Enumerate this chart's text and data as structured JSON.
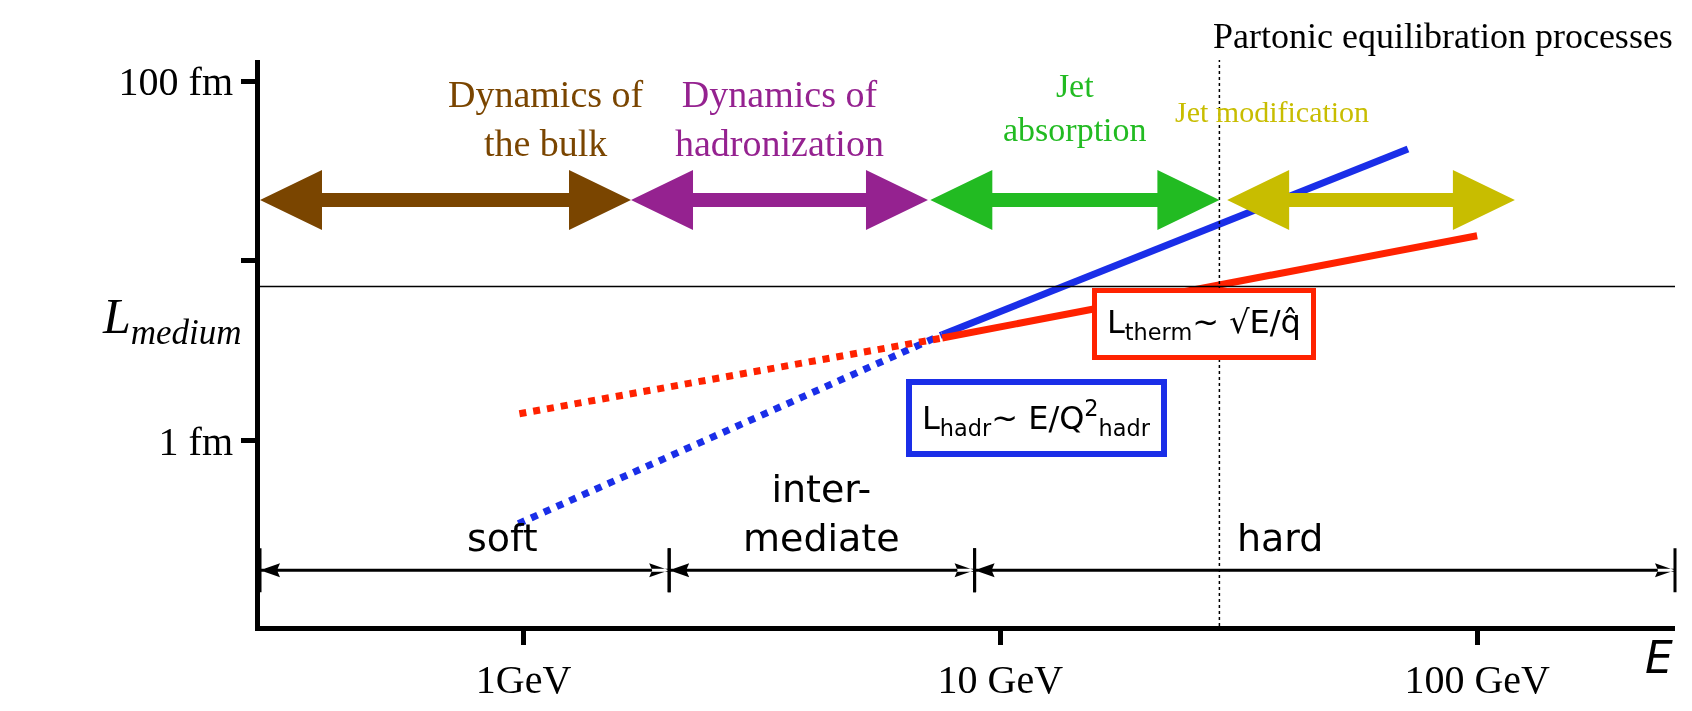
{
  "chart_data": {
    "type": "line",
    "log": "xy",
    "grid": false,
    "xlabel": "E",
    "xlim": [
      0.28,
      260
    ],
    "ylim": [
      0.093,
      131
    ],
    "xticks": [
      {
        "value": 1,
        "label": "1GeV"
      },
      {
        "value": 10,
        "label": "10 GeV"
      },
      {
        "value": 100,
        "label": "100 GeV"
      }
    ],
    "yticks": [
      {
        "value": 1,
        "label": "1 fm"
      },
      {
        "value": 10,
        "label": null
      },
      {
        "value": 100,
        "label": "100 fm"
      }
    ],
    "series": [
      {
        "color": "#1a2ee8",
        "line_style": "solid",
        "x": [
          7.55,
          71.6
        ],
        "values": [
          3.88,
          41.9
        ]
      },
      {
        "color": "#1a2ee8",
        "line_style": "dotted",
        "x": [
          0.975,
          7.55
        ],
        "values": [
          0.345,
          3.88
        ]
      },
      {
        "color": "#ff2200",
        "line_style": "solid",
        "x": [
          7.55,
          100
        ],
        "values": [
          3.72,
          13.8
        ]
      },
      {
        "color": "#ff2200",
        "line_style": "dotted",
        "x": [
          0.98,
          7.55
        ],
        "values": [
          1.41,
          3.72
        ]
      }
    ],
    "ref_lines": [
      {
        "axis": "y",
        "value": 7.2,
        "label": "L$_{medium}$",
        "color": "#000000",
        "line_style": "solid"
      },
      {
        "axis": "x",
        "value": 28.8,
        "color": "#000000",
        "line_style": "dotted"
      }
    ],
    "annotations": [
      "Partonic equilibration processes",
      "L$_{hadr}$~ E/Q$^{2}$$_{hadr}$",
      "L$_{therm}$~ √E/q̂",
      "Dynamics of\nthe bulk",
      "Dynamics of\nhadronization",
      "Jet\nabsorption",
      "Jet modification",
      "soft",
      "inter-\nmediate",
      "hard"
    ]
  }
}
